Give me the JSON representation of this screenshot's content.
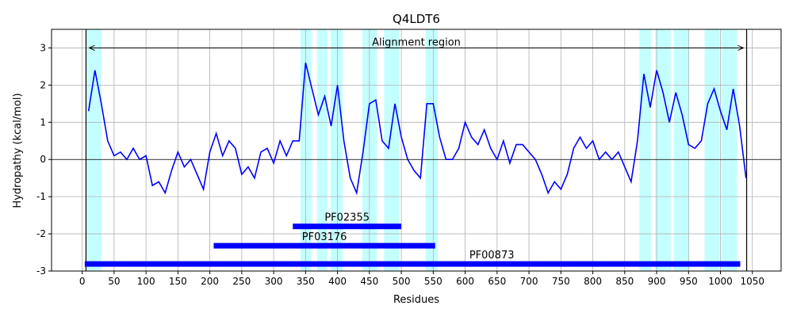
{
  "chart_data": {
    "type": "line",
    "title": "Q4LDT6",
    "x_label": "Residues",
    "y_label": "Hydropathy (kcal/mol)",
    "x": [
      10,
      20,
      30,
      40,
      50,
      60,
      70,
      80,
      90,
      100,
      110,
      120,
      130,
      140,
      150,
      160,
      170,
      180,
      190,
      200,
      210,
      220,
      230,
      240,
      250,
      260,
      270,
      280,
      290,
      300,
      310,
      320,
      330,
      340,
      350,
      360,
      370,
      380,
      390,
      400,
      410,
      420,
      430,
      440,
      450,
      460,
      470,
      480,
      490,
      500,
      510,
      520,
      530,
      540,
      550,
      560,
      570,
      580,
      590,
      600,
      610,
      620,
      630,
      640,
      650,
      660,
      670,
      680,
      690,
      700,
      710,
      720,
      730,
      740,
      750,
      760,
      770,
      780,
      790,
      800,
      810,
      820,
      830,
      840,
      850,
      860,
      870,
      880,
      890,
      900,
      910,
      920,
      930,
      940,
      950,
      960,
      970,
      980,
      990,
      1000,
      1010,
      1020,
      1030,
      1040
    ],
    "series": [
      {
        "name": "Hydropathy",
        "color": "#0000ff",
        "values": [
          1.3,
          2.4,
          1.5,
          0.5,
          0.1,
          0.2,
          0.0,
          0.3,
          0.0,
          0.1,
          -0.7,
          -0.6,
          -0.9,
          -0.3,
          0.2,
          -0.2,
          0.0,
          -0.4,
          -0.8,
          0.2,
          0.7,
          0.1,
          0.5,
          0.3,
          -0.4,
          -0.2,
          -0.5,
          0.2,
          0.3,
          -0.1,
          0.5,
          0.1,
          0.5,
          0.5,
          2.6,
          1.9,
          1.2,
          1.7,
          0.9,
          2.0,
          0.5,
          -0.5,
          -0.9,
          0.2,
          1.5,
          1.6,
          0.5,
          0.3,
          1.5,
          0.6,
          0.0,
          -0.3,
          -0.5,
          1.5,
          1.5,
          0.6,
          0.0,
          0.0,
          0.3,
          1.0,
          0.6,
          0.4,
          0.8,
          0.3,
          0.0,
          0.5,
          -0.1,
          0.4,
          0.4,
          0.2,
          0.0,
          -0.4,
          -0.9,
          -0.6,
          -0.8,
          -0.4,
          0.3,
          0.6,
          0.3,
          0.5,
          0.0,
          0.2,
          0.0,
          0.2,
          -0.2,
          -0.6,
          0.5,
          2.3,
          1.4,
          2.4,
          1.8,
          1.0,
          1.8,
          1.2,
          0.4,
          0.3,
          0.5,
          1.5,
          1.9,
          1.3,
          0.8,
          1.9,
          0.9,
          -0.5
        ]
      }
    ],
    "regions": [
      [
        7.5,
        30
      ],
      [
        342,
        359
      ],
      [
        368,
        384
      ],
      [
        389,
        408
      ],
      [
        439,
        462
      ],
      [
        473,
        497
      ],
      [
        538,
        557
      ],
      [
        873,
        891
      ],
      [
        898,
        922
      ],
      [
        927,
        951
      ],
      [
        975,
        998
      ],
      [
        1001,
        1026
      ]
    ],
    "region_color": "#c4ffff",
    "vlines": [
      6,
      1041
    ],
    "hlines": [
      0
    ],
    "annotation": {
      "text": "Alignment region",
      "start": 11,
      "end": 1036,
      "y": 3
    },
    "domains": [
      {
        "label": "PF02355",
        "start": 330,
        "end": 500,
        "y": -1.8
      },
      {
        "label": "PF03176",
        "start": 206,
        "end": 553,
        "y": -2.32
      },
      {
        "label": "PF00873",
        "start": 4,
        "end": 1031,
        "y": -2.81
      }
    ],
    "domain_color": "#0000ff",
    "xlim": [
      -48,
      1095
    ],
    "ylim": [
      -3,
      3.5
    ],
    "xticks": [
      0,
      50,
      100,
      150,
      200,
      250,
      300,
      350,
      400,
      450,
      500,
      550,
      600,
      650,
      700,
      750,
      800,
      850,
      900,
      950,
      1000,
      1050
    ],
    "yticks": [
      -3,
      -2,
      -1,
      0,
      1,
      2,
      3
    ],
    "grid": true
  }
}
